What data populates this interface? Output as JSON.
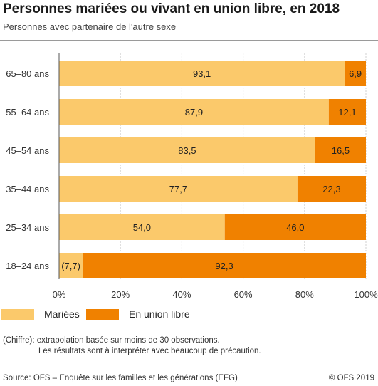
{
  "header": {
    "title": "Personnes mariées ou vivant en union libre, en 2018",
    "subtitle": "Personnes avec partenaire de l'autre sexe"
  },
  "chart_data": {
    "type": "bar",
    "orientation": "horizontal",
    "stacked": true,
    "categories": [
      "65–80 ans",
      "55–64 ans",
      "45–54 ans",
      "35–44 ans",
      "25–34 ans",
      "18–24 ans"
    ],
    "series": [
      {
        "name": "Mariées",
        "color": "#fbc96b",
        "values": [
          93.1,
          87.9,
          83.5,
          77.7,
          54.0,
          7.7
        ],
        "labels": [
          "93,1",
          "87,9",
          "83,5",
          "77,7",
          "54,0",
          "(7,7)"
        ]
      },
      {
        "name": "En union libre",
        "color": "#f08100",
        "values": [
          6.9,
          12.1,
          16.5,
          22.3,
          46.0,
          92.3
        ],
        "labels": [
          "6,9",
          "12,1",
          "16,5",
          "22,3",
          "46,0",
          "92,3"
        ]
      }
    ],
    "xlim": [
      0,
      100
    ],
    "xticks": [
      "0%",
      "20%",
      "40%",
      "60%",
      "80%",
      "100%"
    ],
    "grid": true,
    "legend_position": "bottom"
  },
  "legend": [
    {
      "label": "Mariées",
      "color": "#fbc96b"
    },
    {
      "label": "En union libre",
      "color": "#f08100"
    }
  ],
  "notes": {
    "line1": "(Chiffre): extrapolation basée sur moins de 30 observations.",
    "line2": "Les résultats sont à interpréter avec beaucoup de précaution."
  },
  "footer": {
    "source": "Source: OFS – Enquête sur les familles et les générations (EFG)",
    "copyright": "© OFS 2019"
  }
}
